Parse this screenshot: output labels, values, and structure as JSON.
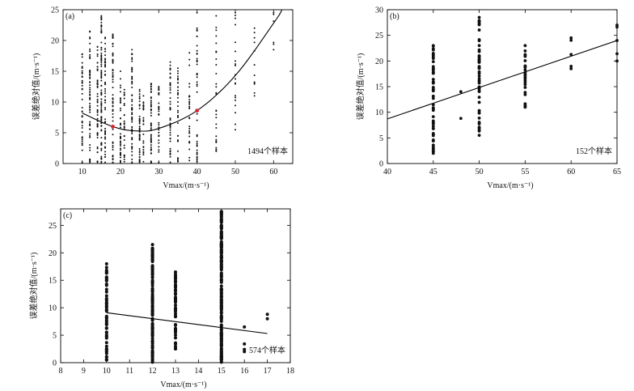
{
  "chart_data": [
    {
      "type": "scatter",
      "panel": "(a)",
      "xlabel": "V_max/(m·s⁻¹)",
      "ylabel": "误差绝对值/(m·s⁻¹)",
      "xlim": [
        5,
        65
      ],
      "ylim": [
        0,
        25
      ],
      "xticks": [
        10,
        20,
        30,
        40,
        50,
        60
      ],
      "yticks": [
        0,
        5,
        10,
        15,
        20,
        25
      ],
      "annotation": "1494个样本",
      "columns": [
        {
          "x": 10,
          "ymin": 0.2,
          "ymax": 17.8,
          "n": 40
        },
        {
          "x": 12,
          "ymin": 0.2,
          "ymax": 21.5,
          "n": 60
        },
        {
          "x": 14,
          "ymin": 0.2,
          "ymax": 19,
          "n": 50
        },
        {
          "x": 15,
          "ymin": 0.1,
          "ymax": 24,
          "n": 90
        },
        {
          "x": 16,
          "ymin": 0.2,
          "ymax": 20.5,
          "n": 55
        },
        {
          "x": 18,
          "ymin": 0.1,
          "ymax": 21,
          "n": 60
        },
        {
          "x": 20,
          "ymin": 0.2,
          "ymax": 15,
          "n": 40
        },
        {
          "x": 21,
          "ymin": 0.3,
          "ymax": 12,
          "n": 25
        },
        {
          "x": 23,
          "ymin": 0.1,
          "ymax": 18.5,
          "n": 60
        },
        {
          "x": 25,
          "ymin": 0.2,
          "ymax": 12,
          "n": 45
        },
        {
          "x": 26,
          "ymin": 0.3,
          "ymax": 11,
          "n": 25
        },
        {
          "x": 28,
          "ymin": 0.1,
          "ymax": 13,
          "n": 50
        },
        {
          "x": 30,
          "ymin": 0.2,
          "ymax": 12.5,
          "n": 30
        },
        {
          "x": 33,
          "ymin": 0.2,
          "ymax": 16.5,
          "n": 45
        },
        {
          "x": 35,
          "ymin": 0.3,
          "ymax": 15.5,
          "n": 35
        },
        {
          "x": 38,
          "ymin": 0.5,
          "ymax": 18,
          "n": 30
        },
        {
          "x": 40,
          "ymin": 0.3,
          "ymax": 24.5,
          "n": 40
        },
        {
          "x": 45,
          "ymin": 2,
          "ymax": 24,
          "n": 30
        },
        {
          "x": 50,
          "ymin": 5.5,
          "ymax": 24.5,
          "n": 20
        },
        {
          "x": 55,
          "ymin": 11,
          "ymax": 22,
          "n": 12
        },
        {
          "x": 60,
          "ymin": 18.5,
          "ymax": 24.5,
          "n": 6
        }
      ],
      "red_points": [
        [
          18,
          6.0
        ],
        [
          40,
          8.6
        ]
      ],
      "fit": {
        "type": "quadratic",
        "points": [
          [
            10,
            8.2
          ],
          [
            18,
            6.0
          ],
          [
            24,
            5.3
          ],
          [
            30,
            5.7
          ],
          [
            40,
            8.6
          ],
          [
            50,
            14.3
          ],
          [
            60,
            22.8
          ],
          [
            62.2,
            25
          ]
        ]
      }
    },
    {
      "type": "scatter",
      "panel": "(b)",
      "xlabel": "V_max/(m·s⁻¹)",
      "ylabel": "误差绝对值/(m·s⁻¹)",
      "xlim": [
        40,
        65
      ],
      "ylim": [
        0,
        30
      ],
      "xticks": [
        40,
        45,
        50,
        55,
        60,
        65
      ],
      "yticks": [
        0,
        5,
        10,
        15,
        20,
        25,
        30
      ],
      "annotation": "152个样本",
      "columns": [
        {
          "x": 45,
          "ymin": 2,
          "ymax": 23,
          "n": 60
        },
        {
          "x": 48,
          "ymin": 8.8,
          "ymax": 14,
          "n": 2
        },
        {
          "x": 50,
          "ymin": 5.5,
          "ymax": 28.5,
          "n": 55
        },
        {
          "x": 55,
          "ymin": 11,
          "ymax": 23,
          "n": 25
        },
        {
          "x": 60,
          "ymin": 18.5,
          "ymax": 24.5,
          "n": 5
        },
        {
          "x": 65,
          "ymin": 20,
          "ymax": 27,
          "n": 5
        }
      ],
      "fit": {
        "type": "linear",
        "points": [
          [
            40,
            8.7
          ],
          [
            65,
            24.0
          ]
        ]
      }
    },
    {
      "type": "scatter",
      "panel": "(c)",
      "xlabel": "V_max/(m·s⁻¹)",
      "ylabel": "误差绝对值/(m·s⁻¹)",
      "xlim": [
        8,
        18
      ],
      "ylim": [
        0,
        28
      ],
      "xticks": [
        8,
        9,
        10,
        11,
        12,
        13,
        14,
        15,
        16,
        17,
        18
      ],
      "yticks": [
        0,
        5,
        10,
        15,
        20,
        25
      ],
      "annotation": "574个样本",
      "columns": [
        {
          "x": 10,
          "ymin": 0.5,
          "ymax": 18,
          "n": 60
        },
        {
          "x": 12,
          "ymin": 0.1,
          "ymax": 21.5,
          "n": 120
        },
        {
          "x": 13,
          "ymin": 2.5,
          "ymax": 16.5,
          "n": 45
        },
        {
          "x": 15,
          "ymin": 0.1,
          "ymax": 27.5,
          "n": 200
        },
        {
          "x": 16,
          "ymin": 2,
          "ymax": 6.5,
          "n": 4
        },
        {
          "x": 17,
          "ymin": 8,
          "ymax": 8.8,
          "n": 2
        }
      ],
      "fit": {
        "type": "linear",
        "points": [
          [
            10,
            9.1
          ],
          [
            17,
            5.3
          ]
        ]
      }
    }
  ]
}
